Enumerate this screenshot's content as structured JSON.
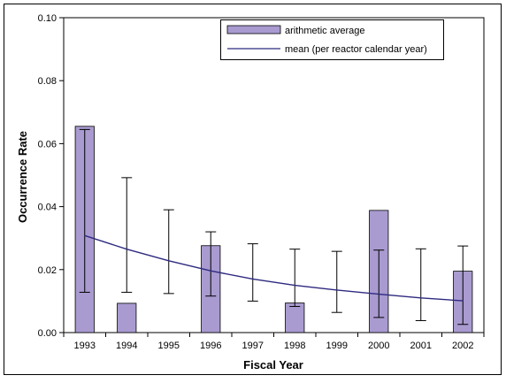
{
  "chart_data": {
    "type": "bar",
    "xlabel": "Fiscal Year",
    "ylabel": "Occurrence Rate",
    "categories": [
      "1993",
      "1994",
      "1995",
      "1996",
      "1997",
      "1998",
      "1999",
      "2000",
      "2001",
      "2002"
    ],
    "ylim": [
      0,
      0.1
    ],
    "yticks": [
      "0.00",
      "0.02",
      "0.04",
      "0.06",
      "0.08",
      "0.10"
    ],
    "grid": false,
    "legend_position": "top-right",
    "series": [
      {
        "name": "arithmetic average",
        "kind": "bar",
        "color": "#a99bd0",
        "values": [
          0.0655,
          0.0093,
          0,
          0.0276,
          0,
          0.0094,
          0,
          0.0388,
          0,
          0.0195
        ]
      },
      {
        "name": "mean (per reactor calendar year)",
        "kind": "line",
        "color": "#2e2a80",
        "values": [
          0.0308,
          0.0265,
          0.0228,
          0.0196,
          0.017,
          0.015,
          0.0135,
          0.0122,
          0.011,
          0.0101
        ]
      }
    ],
    "error_bars": {
      "lower": [
        0.0128,
        0.0128,
        0.0124,
        0.0116,
        0.01,
        0.0083,
        0.0064,
        0.0048,
        0.0038,
        0.0026
      ],
      "upper": [
        0.0645,
        0.0492,
        0.039,
        0.032,
        0.0282,
        0.0265,
        0.0258,
        0.0262,
        0.0266,
        0.0275
      ]
    }
  }
}
